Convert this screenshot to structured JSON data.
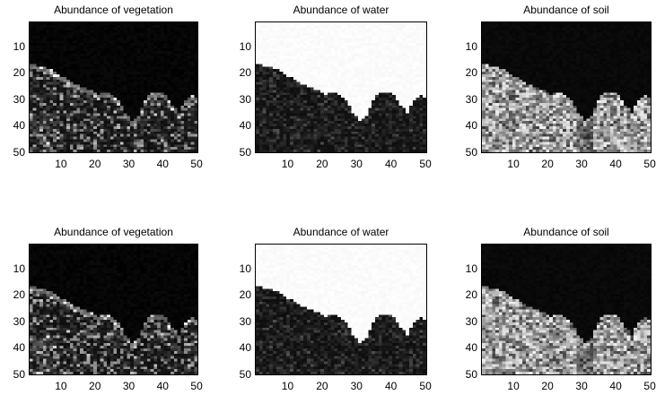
{
  "chart_data": [
    {
      "type": "heatmap",
      "title": "Abundance of vegetation",
      "material": "vegetation",
      "x_ticks": [
        "10",
        "20",
        "30",
        "40",
        "50"
      ],
      "y_ticks": [
        "10",
        "20",
        "30",
        "40",
        "50"
      ],
      "xlim": [
        0.5,
        50.5
      ],
      "ylim": [
        0.5,
        50.5
      ],
      "colormap": "gray",
      "variant": 1
    },
    {
      "type": "heatmap",
      "title": "Abundance of water",
      "material": "water",
      "x_ticks": [
        "10",
        "20",
        "30",
        "40",
        "50"
      ],
      "y_ticks": [
        "10",
        "20",
        "30",
        "40",
        "50"
      ],
      "xlim": [
        0.5,
        50.5
      ],
      "ylim": [
        0.5,
        50.5
      ],
      "colormap": "gray",
      "variant": 1
    },
    {
      "type": "heatmap",
      "title": "Abundance of soil",
      "material": "soil",
      "x_ticks": [
        "10",
        "20",
        "30",
        "40",
        "50"
      ],
      "y_ticks": [
        "10",
        "20",
        "30",
        "40",
        "50"
      ],
      "xlim": [
        0.5,
        50.5
      ],
      "ylim": [
        0.5,
        50.5
      ],
      "colormap": "gray",
      "variant": 1
    },
    {
      "type": "heatmap",
      "title": "Abundance of vegetation",
      "material": "vegetation",
      "x_ticks": [
        "10",
        "20",
        "30",
        "40",
        "50"
      ],
      "y_ticks": [
        "10",
        "20",
        "30",
        "40",
        "50"
      ],
      "xlim": [
        0.5,
        50.5
      ],
      "ylim": [
        0.5,
        50.5
      ],
      "colormap": "gray",
      "variant": 2
    },
    {
      "type": "heatmap",
      "title": "Abundance of water",
      "material": "water",
      "x_ticks": [
        "10",
        "20",
        "30",
        "40",
        "50"
      ],
      "y_ticks": [
        "10",
        "20",
        "30",
        "40",
        "50"
      ],
      "xlim": [
        0.5,
        50.5
      ],
      "ylim": [
        0.5,
        50.5
      ],
      "colormap": "gray",
      "variant": 2
    },
    {
      "type": "heatmap",
      "title": "Abundance of soil",
      "material": "soil",
      "x_ticks": [
        "10",
        "20",
        "30",
        "40",
        "50"
      ],
      "y_ticks": [
        "10",
        "20",
        "30",
        "40",
        "50"
      ],
      "xlim": [
        0.5,
        50.5
      ],
      "ylim": [
        0.5,
        50.5
      ],
      "colormap": "gray",
      "variant": 2
    }
  ]
}
